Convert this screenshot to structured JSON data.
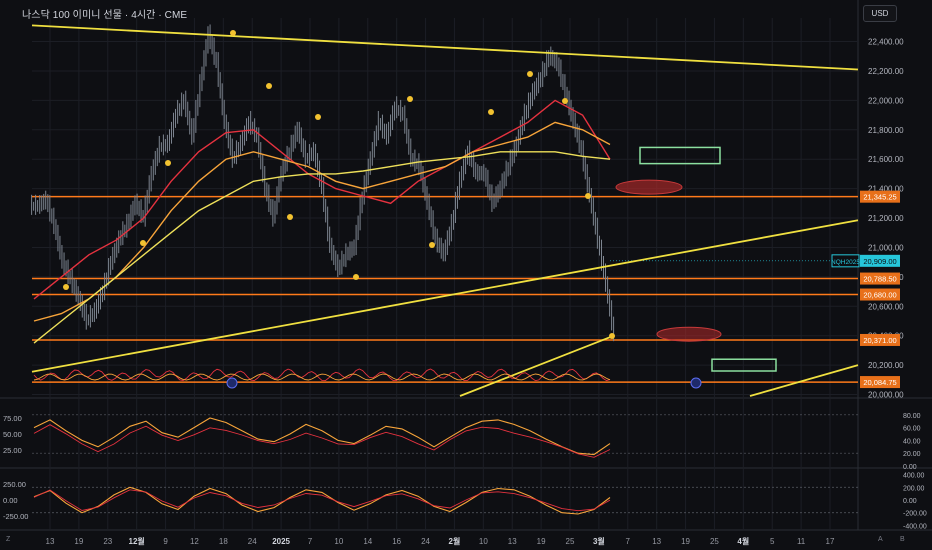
{
  "header": {
    "title": "나스닥 100 이미니 선물 · 4시간 · CME",
    "currency": "USD"
  },
  "colors": {
    "background": "#0e0f13",
    "trendline": "#f0e040",
    "hline": "#ff7a1a",
    "price_tag": "#e8701a",
    "current_tag": "#26c6da",
    "ma_red": "#e5323f",
    "ma_orange": "#f7a43a",
    "ma_yellow": "#eee05a",
    "candle": "#7d8590",
    "box": "#8ce0a0",
    "ellipse": "#b02a2a"
  },
  "chart_data": {
    "type": "line",
    "title": "나스닥 100 이미니 선물 · 4시간 · CME",
    "x_ticks": [
      "13",
      "19",
      "23",
      "12월",
      "9",
      "12",
      "18",
      "24",
      "2025",
      "7",
      "10",
      "14",
      "16",
      "24",
      "2월",
      "10",
      "13",
      "19",
      "25",
      "3월",
      "7",
      "13",
      "19",
      "25",
      "4월",
      "5",
      "11",
      "17"
    ],
    "price_axis": {
      "ticks": [
        "22,400.00",
        "22,200.00",
        "22,000.00",
        "21,800.00",
        "21,600.00",
        "21,400.00",
        "21,200.00",
        "21,000.00",
        "20,800.00",
        "20,600.00",
        "20,400.00",
        "20,200.00",
        "20,000.00"
      ],
      "range": [
        19990,
        22560
      ]
    },
    "horizontal_levels": [
      "21,345.25",
      "20,788.50",
      "20,680.00",
      "20,371.00",
      "20,084.75"
    ],
    "current_symbol": "NQH2025",
    "current_price": "20,909.00",
    "price_points": [
      21280,
      21320,
      21150,
      20900,
      20780,
      20650,
      20500,
      20560,
      20700,
      20900,
      21050,
      21150,
      21300,
      21200,
      21500,
      21680,
      21700,
      21900,
      22000,
      21750,
      22100,
      22450,
      22250,
      21850,
      21600,
      21700,
      21850,
      21750,
      21400,
      21200,
      21500,
      21650,
      21800,
      21600,
      21650,
      21400,
      21000,
      20850,
      20950,
      21000,
      21350,
      21600,
      21850,
      21750,
      21950,
      21900,
      21600,
      21550,
      21300,
      21050,
      20950,
      21150,
      21450,
      21650,
      21500,
      21500,
      21300,
      21400,
      21550,
      21700,
      21900,
      22050,
      22150,
      22300,
      22250,
      22050,
      21850,
      21650,
      21350,
      21050,
      20750,
      20400
    ],
    "series": [
      {
        "values": [
          20650,
          20800,
          20950,
          21050,
          21200,
          21450,
          21650,
          21780,
          21800,
          21650,
          21500,
          21400,
          21350,
          21300,
          21450,
          21550,
          21650,
          21750,
          21850,
          22000,
          21900,
          21600
        ]
      },
      {
        "values": [
          20500,
          20550,
          20650,
          20800,
          21000,
          21250,
          21450,
          21600,
          21650,
          21600,
          21550,
          21450,
          21400,
          21450,
          21500,
          21550,
          21650,
          21700,
          21750,
          21850,
          21800,
          21700
        ]
      },
      {
        "values": [
          20350,
          20500,
          20650,
          20800,
          20950,
          21100,
          21250,
          21350,
          21450,
          21480,
          21500,
          21500,
          21520,
          21550,
          21580,
          21600,
          21620,
          21650,
          21650,
          21650,
          21620,
          21600
        ]
      }
    ],
    "panel1_ticks_left": [
      "75.00",
      "50.00",
      "25.00"
    ],
    "panel1_ticks_right": [
      "80.00",
      "60.00",
      "40.00",
      "20.00",
      "0.00"
    ],
    "panel1_guides": [
      "80.00",
      "20.00"
    ],
    "panel1_values": [
      60,
      72,
      55,
      40,
      30,
      45,
      62,
      70,
      52,
      45,
      60,
      75,
      68,
      55,
      42,
      38,
      50,
      65,
      55,
      40,
      35,
      48,
      62,
      58,
      45,
      30,
      45,
      60,
      70,
      72,
      65,
      55,
      42,
      30,
      20,
      18,
      35
    ],
    "panel2_ticks_left": [
      "250.00",
      "0.00",
      "-250.00"
    ],
    "panel2_ticks_right": [
      "400.00",
      "200.00",
      "0.00",
      "-200.00",
      "-400.00"
    ],
    "panel2_guides": [
      "200.00",
      "-200.00"
    ],
    "panel2_values": [
      50,
      150,
      -50,
      -200,
      -100,
      80,
      200,
      120,
      -60,
      -150,
      60,
      180,
      100,
      -80,
      -180,
      -120,
      40,
      160,
      120,
      -40,
      -160,
      -60,
      80,
      150,
      60,
      -100,
      -180,
      -40,
      120,
      180,
      160,
      60,
      -80,
      -200,
      -220,
      -150,
      40
    ]
  },
  "corner_labels": {
    "bottom_left": "Z",
    "bottom_right_1": "A",
    "bottom_right_2": "B"
  }
}
